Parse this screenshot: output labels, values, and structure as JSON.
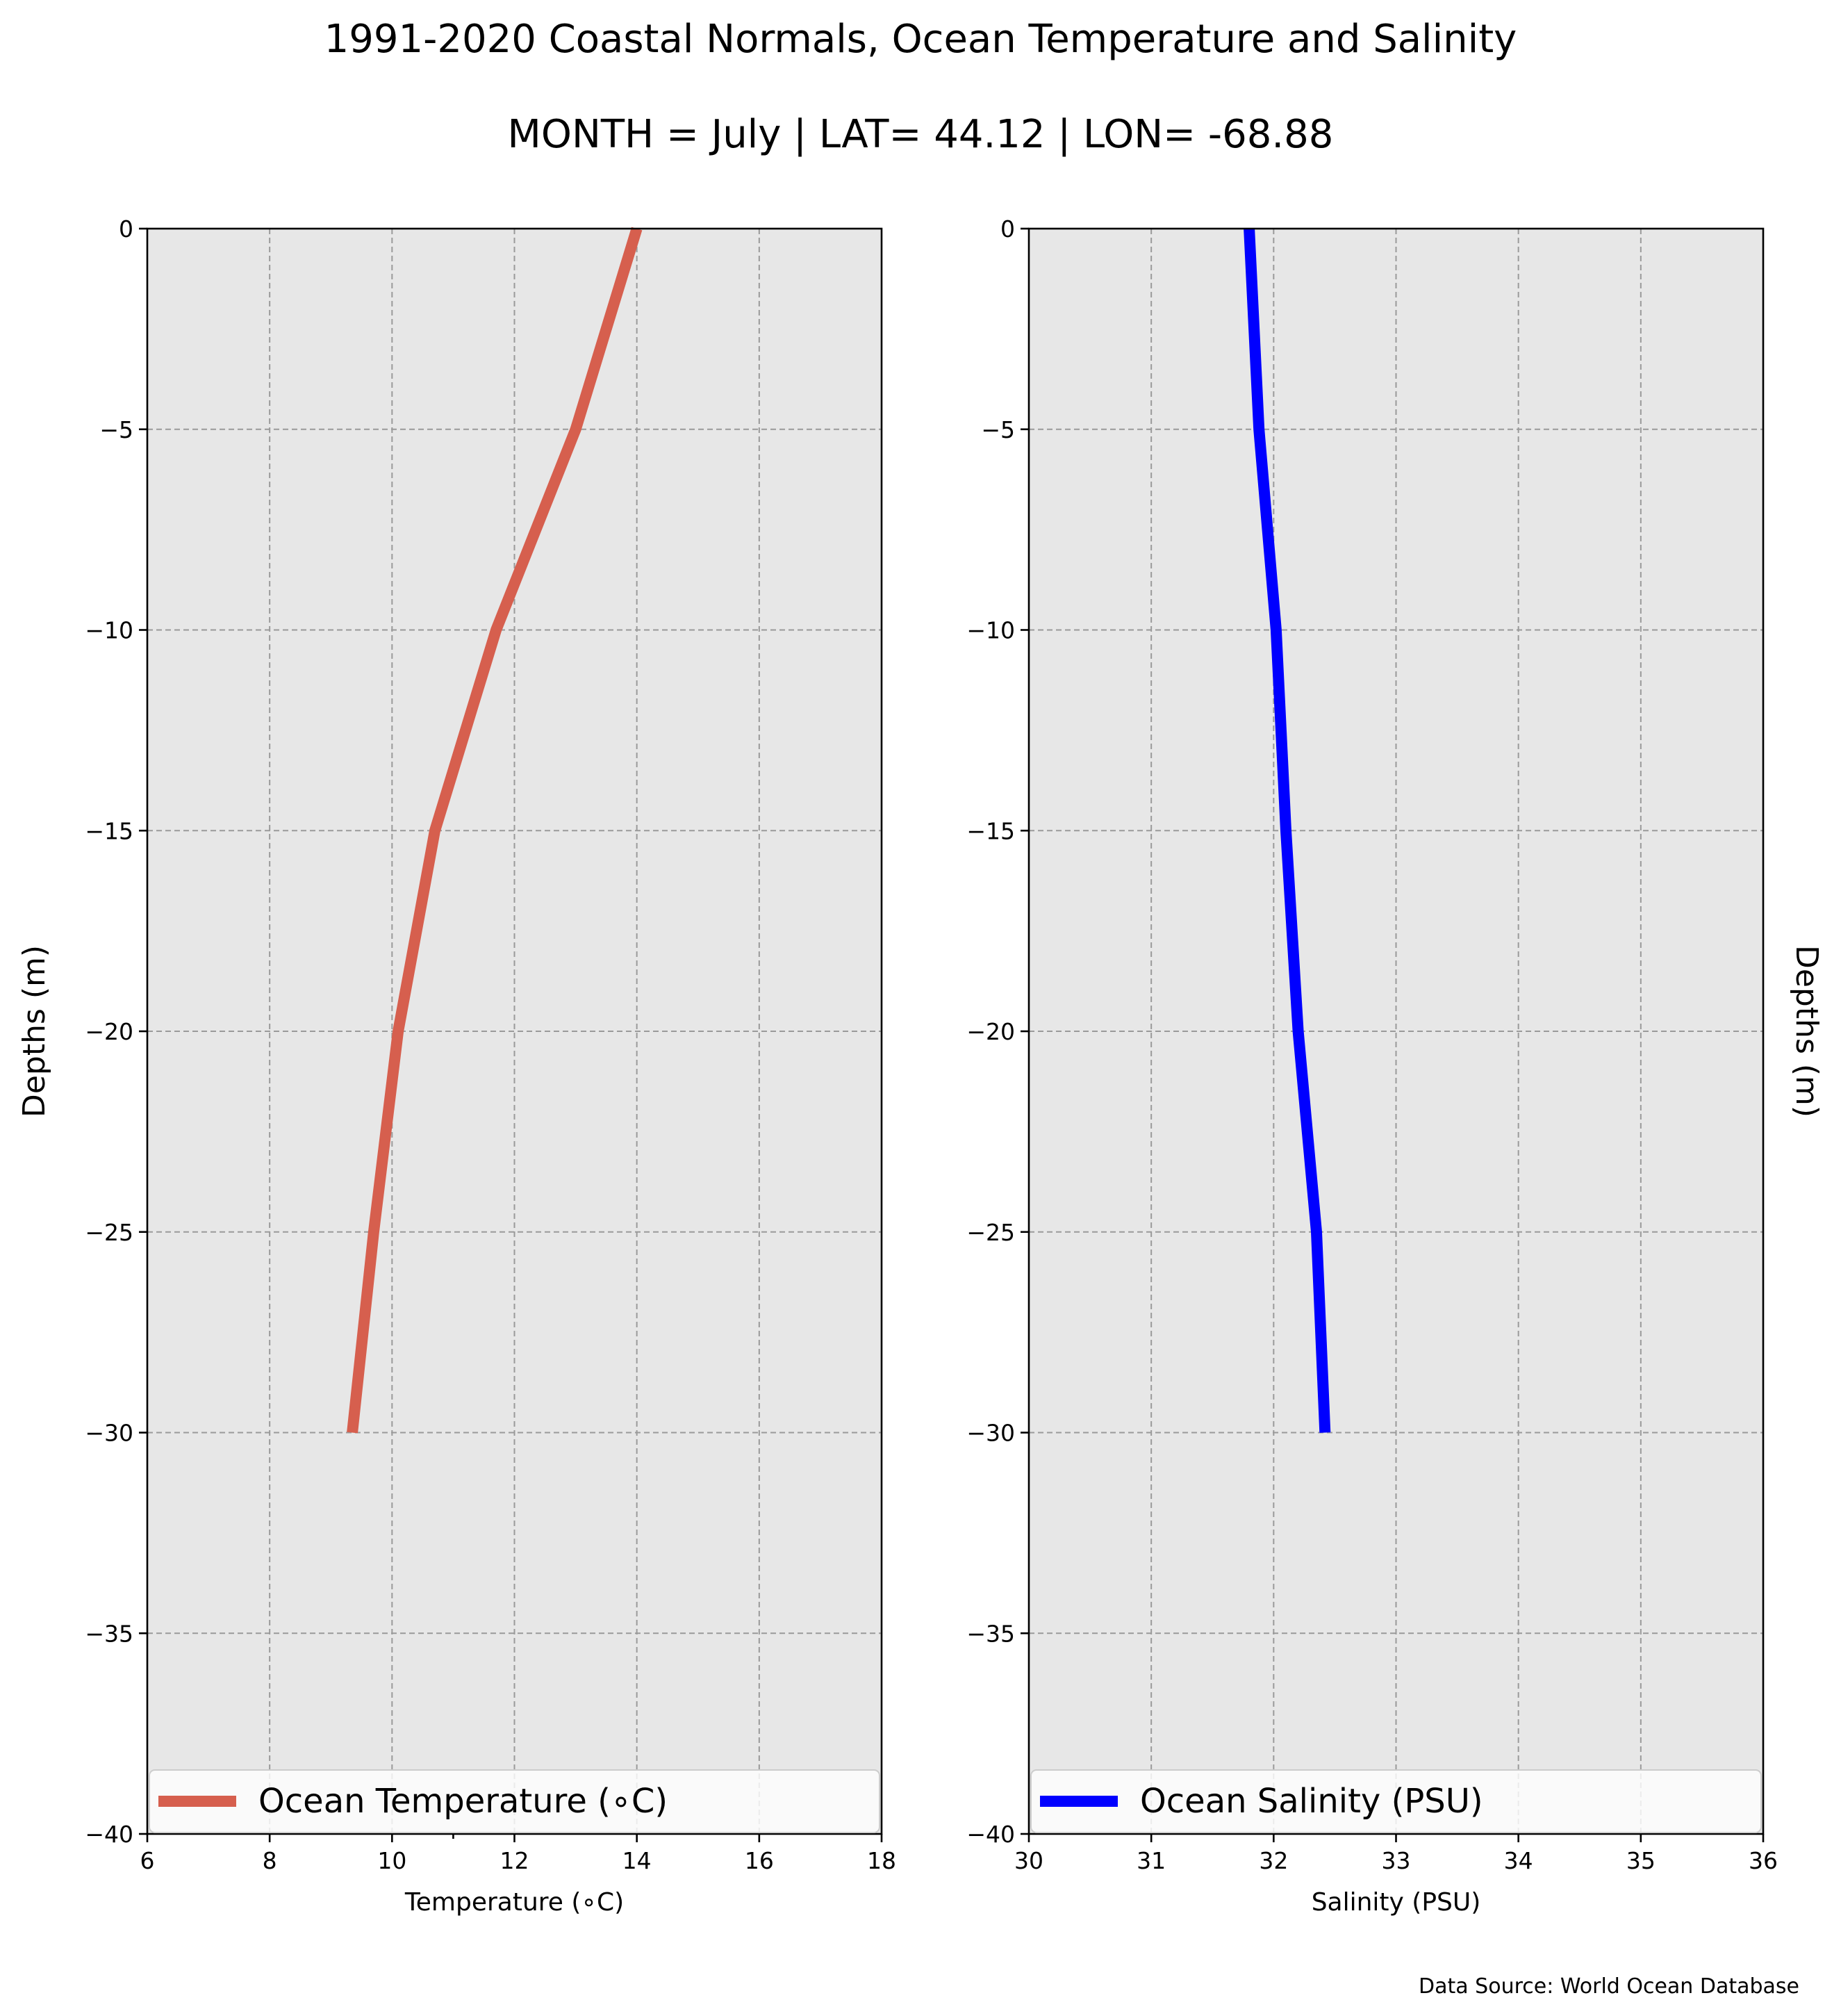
{
  "figure": {
    "title": "1991-2020 Coastal Normals, Ocean Temperature and Salinity",
    "subtitle": "MONTH = July | LAT= 44.12 | LON= -68.88",
    "source": "Data Source: World Ocean Database"
  },
  "chart_data": [
    {
      "type": "line",
      "xlabel": "Temperature (∘C)",
      "ylabel": "Depths (m)",
      "xlim": [
        6,
        18
      ],
      "ylim": [
        -40,
        0
      ],
      "x_ticks": [
        6,
        8,
        10,
        12,
        14,
        16,
        18
      ],
      "x_minor_ticks": [
        11
      ],
      "y_ticks": [
        0,
        -5,
        -10,
        -15,
        -20,
        -25,
        -30,
        -35,
        -40
      ],
      "y_tick_labels": [
        "0",
        "−5",
        "−10",
        "−15",
        "−20",
        "−25",
        "−30",
        "−35",
        "−40"
      ],
      "grid": true,
      "background": "#e7e7e7",
      "legend_position": "bottom",
      "series": [
        {
          "name": "Ocean Temperature (∘C)",
          "color": "#d65f4e",
          "x": [
            14.0,
            13.0,
            11.7,
            10.7,
            10.1,
            9.7,
            9.35
          ],
          "y": [
            0,
            -5,
            -10,
            -15,
            -20,
            -25,
            -30
          ]
        }
      ]
    },
    {
      "type": "line",
      "xlabel": "Salinity (PSU)",
      "ylabel": "Depths (m)",
      "xlim": [
        30,
        36
      ],
      "ylim": [
        -40,
        0
      ],
      "x_ticks": [
        30,
        31,
        32,
        33,
        34,
        35,
        36
      ],
      "x_minor_ticks": [],
      "y_ticks": [
        0,
        -5,
        -10,
        -15,
        -20,
        -25,
        -30,
        -35,
        -40
      ],
      "y_tick_labels": [
        "0",
        "−5",
        "−10",
        "−15",
        "−20",
        "−25",
        "−30",
        "−35",
        "−40"
      ],
      "grid": true,
      "background": "#e7e7e7",
      "legend_position": "bottom",
      "ylabel_side": "right",
      "series": [
        {
          "name": "Ocean Salinity (PSU)",
          "color": "#0000ff",
          "x": [
            31.8,
            31.88,
            32.02,
            32.1,
            32.2,
            32.35,
            32.42
          ],
          "y": [
            0,
            -5,
            -10,
            -15,
            -20,
            -25,
            -30
          ]
        }
      ]
    }
  ]
}
